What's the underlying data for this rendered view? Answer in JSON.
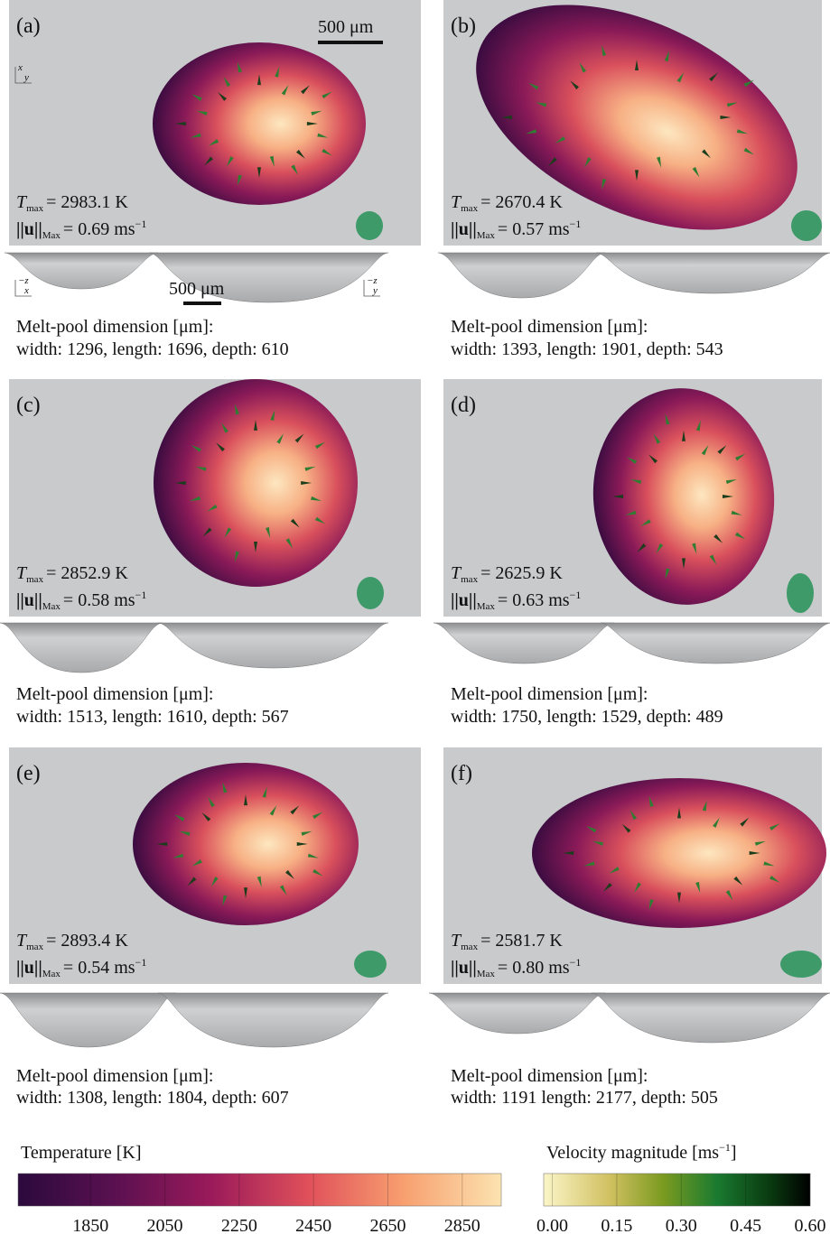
{
  "scale_bar": "500 μm",
  "symbols": {
    "t": "T",
    "t_sub": "max",
    "u": "||u||",
    "u_sub": "Max",
    "unit": "ms",
    "unit_exp": "−1"
  },
  "dimension_title": "Melt-pool dimension [μm]:",
  "axes": {
    "top": [
      "x",
      "y"
    ],
    "side_left": [
      "−z",
      "x"
    ],
    "side_right": [
      "−z",
      "y"
    ]
  },
  "panels": [
    {
      "label": "(a)",
      "t_max": "= 2983.1 K",
      "u_max": "= 0.69",
      "dimensions": "width: 1296, length: 1696, depth: 610"
    },
    {
      "label": "(b)",
      "t_max": "= 2670.4 K",
      "u_max": "= 0.57",
      "dimensions": "width: 1393, length: 1901, depth: 543"
    },
    {
      "label": "(c)",
      "t_max": "= 2852.9 K",
      "u_max": "= 0.58",
      "dimensions": "width: 1513, length: 1610, depth: 567"
    },
    {
      "label": "(d)",
      "t_max": "= 2625.9 K",
      "u_max": "= 0.63",
      "dimensions": "width: 1750, length: 1529, depth: 489"
    },
    {
      "label": "(e)",
      "t_max": "= 2893.4 K",
      "u_max": "= 0.54",
      "dimensions": "width: 1308, length: 1804, depth: 607"
    },
    {
      "label": "(f)",
      "t_max": "= 2581.7 K",
      "u_max": "= 0.80",
      "dimensions": "width: 1191 length: 2177, depth: 505"
    }
  ],
  "colorbars": [
    {
      "title": "Temperature [K]",
      "lim": [
        1655,
        2955
      ],
      "ticks": [
        1850,
        2050,
        2250,
        2450,
        2650,
        2850
      ]
    },
    {
      "title": "Velocity magnitude [ms",
      "title_exp": "−1",
      "title_end": "]",
      "lim": [
        -0.02,
        0.6
      ],
      "ticks": [
        {
          "value": 0,
          "label": "0.00"
        },
        {
          "value": 0.15,
          "label": "0.15"
        },
        {
          "value": 0.3,
          "label": "0.30"
        },
        {
          "value": 0.45,
          "label": "0.45"
        },
        {
          "value": 0.6,
          "label": "0.60"
        }
      ]
    }
  ]
}
